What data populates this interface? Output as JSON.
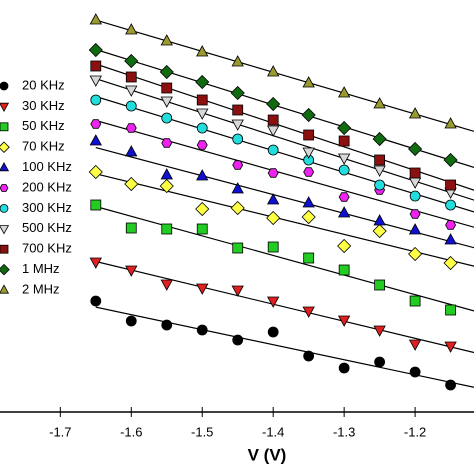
{
  "chart_data": {
    "type": "scatter",
    "x_label": "V (V)",
    "xlim": [
      -1.785,
      -1.117
    ],
    "ylim": [
      0,
      412
    ],
    "xticks": [
      -1.7,
      -1.6,
      -1.5,
      -1.4,
      -1.3,
      -1.2
    ],
    "x": [
      -1.65,
      -1.6,
      -1.55,
      -1.5,
      -1.45,
      -1.4,
      -1.35,
      -1.3,
      -1.25,
      -1.2,
      -1.15
    ],
    "fit_lines": true,
    "series": [
      {
        "name": "20 KHz",
        "color": "#000000",
        "marker": "circle",
        "values": [
          111,
          91,
          87,
          82,
          72,
          80,
          56,
          44,
          50,
          40,
          27
        ]
      },
      {
        "name": "30 KHz",
        "color": "#e02020",
        "marker": "triangle-down",
        "values": [
          150,
          142,
          128,
          124,
          122,
          111,
          101,
          92,
          82,
          68,
          66
        ]
      },
      {
        "name": "50 KHz",
        "color": "#22cc22",
        "marker": "square",
        "values": [
          207,
          184,
          183,
          183,
          164,
          165,
          154,
          142,
          127,
          111,
          102
        ]
      },
      {
        "name": "70 KHz",
        "color": "#ffff44",
        "marker": "diamond",
        "values": [
          240,
          228,
          226,
          203,
          204,
          194,
          195,
          166,
          181,
          158,
          149
        ]
      },
      {
        "name": "100 KHz",
        "color": "#1010d0",
        "marker": "triangle-up",
        "values": [
          271,
          260,
          237,
          236,
          223,
          212,
          209,
          199,
          191,
          182,
          172
        ]
      },
      {
        "name": "200 KHz",
        "color": "#ee22ee",
        "marker": "hexagon",
        "values": [
          288,
          284,
          269,
          267,
          247,
          239,
          240,
          215,
          222,
          198,
          187
        ]
      },
      {
        "name": "300 KHz",
        "color": "#22dddd",
        "marker": "circle",
        "values": [
          312,
          306,
          294,
          284,
          273,
          262,
          252,
          242,
          227,
          216,
          207
        ]
      },
      {
        "name": "500 KHz",
        "color": "#d8d8d8",
        "marker": "triangle-down",
        "values": [
          332,
          322,
          311,
          299,
          288,
          282,
          260,
          254,
          242,
          230,
          220
        ]
      },
      {
        "name": "700 KHz",
        "color": "#8b1010",
        "marker": "square",
        "values": [
          346,
          335,
          324,
          312,
          302,
          292,
          277,
          271,
          252,
          239,
          227
        ]
      },
      {
        "name": "1 MHz",
        "color": "#106b10",
        "marker": "diamond",
        "values": [
          362,
          351,
          340,
          330,
          319,
          308,
          297,
          284,
          273,
          263,
          252
        ]
      },
      {
        "name": "2 MHz",
        "color": "#9a9a30",
        "marker": "triangle-up",
        "values": [
          392,
          382,
          371,
          360,
          350,
          340,
          329,
          319,
          308,
          298,
          288
        ]
      }
    ]
  }
}
